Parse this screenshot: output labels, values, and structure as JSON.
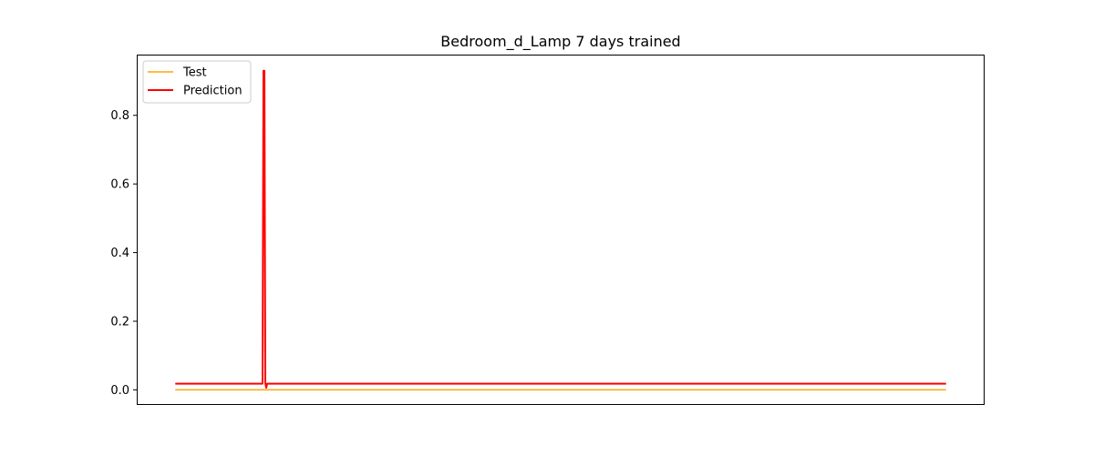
{
  "chart_data": {
    "type": "line",
    "title": "Bedroom_d_Lamp 7 days trained",
    "xlabel": "",
    "ylabel": "",
    "xlim": [
      -12.5,
      262.5
    ],
    "ylim": [
      -0.044,
      0.977
    ],
    "yticks": [
      0.0,
      0.2,
      0.4,
      0.6,
      0.8
    ],
    "ytick_labels": [
      "0.0",
      "0.2",
      "0.4",
      "0.6",
      "0.8"
    ],
    "xticks_visible": false,
    "grid": false,
    "legend": {
      "position": "top-left"
    },
    "series": [
      {
        "name": "Test",
        "color": "#ffa500",
        "x": [
          0,
          250
        ],
        "y": [
          0.0,
          0.0
        ]
      },
      {
        "name": "Prediction",
        "color": "#ff0000",
        "x": [
          0,
          28.3,
          28.6,
          28.9,
          29.2,
          29.5,
          29.8,
          250
        ],
        "y": [
          0.018,
          0.018,
          0.93,
          0.93,
          0.02,
          0.006,
          0.018,
          0.018
        ]
      }
    ]
  }
}
